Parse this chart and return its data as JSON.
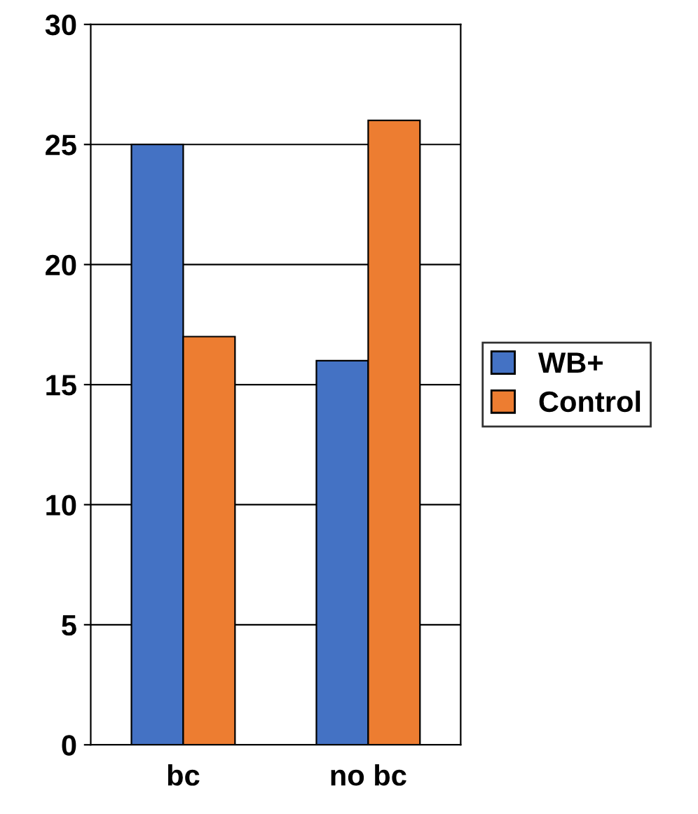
{
  "chart_data": {
    "type": "bar",
    "categories": [
      "bc",
      "no bc"
    ],
    "series": [
      {
        "name": "WB+",
        "color": "#4472c4",
        "values": [
          25,
          16
        ]
      },
      {
        "name": "Control",
        "color": "#ed7d31",
        "values": [
          17,
          26
        ]
      }
    ],
    "ylim": [
      0,
      30
    ],
    "yticks": [
      0,
      5,
      10,
      15,
      20,
      25,
      30
    ],
    "grid": "y",
    "legend": "right"
  }
}
